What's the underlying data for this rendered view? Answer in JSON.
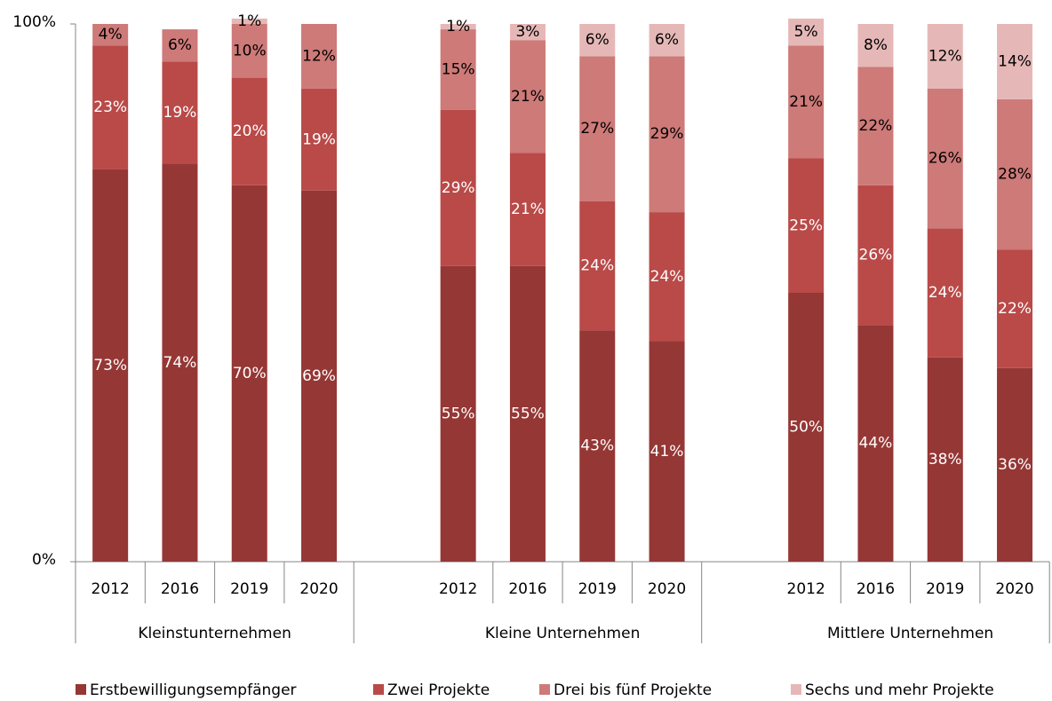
{
  "chart_data": {
    "type": "stacked_bar",
    "categories": [
      "2012",
      "2016",
      "2019",
      "2020",
      "2012",
      "2016",
      "2019",
      "2020",
      "2012",
      "2016",
      "2019",
      "2020"
    ],
    "groups": [
      "Kleinstunternehmen",
      "Kleine Unternehmen",
      "Mittlere Unternehmen"
    ],
    "series": [
      {
        "name": "Erstbewilligungsempfänger",
        "color": "#953735",
        "values": [
          73,
          74,
          70,
          69,
          55,
          55,
          43,
          41,
          50,
          44,
          38,
          36
        ],
        "value_labels": [
          "73%",
          "74%",
          "70%",
          "69%",
          "55%",
          "55%",
          "43%",
          "41%",
          "50%",
          "44%",
          "38%",
          "36%"
        ]
      },
      {
        "name": "Zwei Projekte",
        "color": "#b94a48",
        "values": [
          23,
          19,
          20,
          19,
          29,
          21,
          24,
          24,
          25,
          26,
          24,
          22
        ],
        "value_labels": [
          "23%",
          "19%",
          "20%",
          "19%",
          "29%",
          "21%",
          "24%",
          "24%",
          "25%",
          "26%",
          "24%",
          "22%"
        ]
      },
      {
        "name": "Drei bis fünf Projekte",
        "color": "#cd7a78",
        "values": [
          4,
          6,
          10,
          12,
          15,
          21,
          27,
          29,
          21,
          22,
          26,
          28
        ],
        "value_labels": [
          "4%",
          "6%",
          "10%",
          "12%",
          "15%",
          "21%",
          "27%",
          "29%",
          "21%",
          "22%",
          "26%",
          "28%"
        ]
      },
      {
        "name": "Sechs und mehr Projekte",
        "color": "#e5b8b7",
        "values": [
          0,
          0,
          1,
          0,
          1,
          3,
          6,
          6,
          5,
          8,
          12,
          14
        ],
        "value_labels": [
          null,
          null,
          "1%",
          null,
          "1%",
          "3%",
          "6%",
          "6%",
          "5%",
          "8%",
          "12%",
          "14%"
        ]
      }
    ],
    "ylim": [
      0,
      100
    ],
    "yticks": [
      {
        "value": 0,
        "label": "0%"
      },
      {
        "value": 100,
        "label": "100%"
      }
    ]
  }
}
